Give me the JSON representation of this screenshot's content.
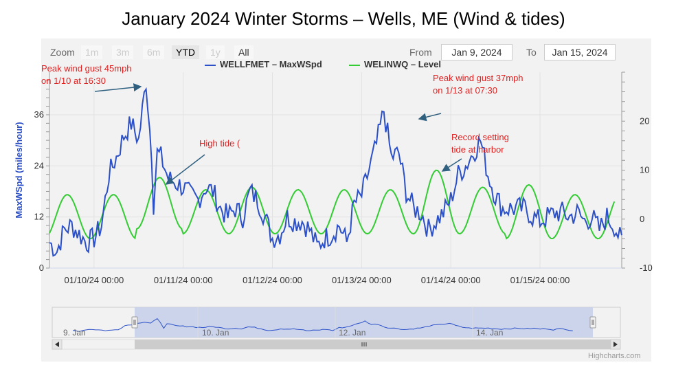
{
  "title": "January 2024 Winter Storms – Wells, ME (Wind & tides)",
  "toolbar": {
    "zoom_label": "Zoom",
    "zoom_buttons": [
      "1m",
      "3m",
      "6m",
      "YTD",
      "1y",
      "All"
    ],
    "active_zoom": "YTD",
    "from_label": "From",
    "from_value": "Jan 9, 2024",
    "to_label": "To",
    "to_value": "Jan 15, 2024"
  },
  "legend": {
    "items": [
      {
        "label": "WELLFMET – MaxWSpd",
        "color": "#2b50c8"
      },
      {
        "label": "WELINWQ – Level",
        "color": "#33cc33"
      }
    ],
    "position": "top-center"
  },
  "credits": "Highcharts.com",
  "annotations": [
    {
      "lines": [
        "Peak wind gust  45mph",
        "on 1/10 at 16:30"
      ]
    },
    {
      "lines": [
        "High tide ("
      ]
    },
    {
      "lines": [
        "Peak wind gust  37mph",
        "on 1/13 at 07:30"
      ]
    },
    {
      "lines": [
        "Record setting",
        "tide at harbor"
      ]
    }
  ],
  "colors": {
    "wind": "#2b50c8",
    "tide": "#33cc33",
    "annotation": "#e02020",
    "arrow": "#2f6080",
    "navigator_fill": "#c7d0ea"
  },
  "navigator": {
    "labels": [
      "9. Jan",
      "10. Jan",
      "12. Jan",
      "14. Jan"
    ]
  },
  "chart_data": {
    "type": "line",
    "x_range": [
      "2024-01-09 12:00",
      "2024-01-15 18:00"
    ],
    "x_ticks": [
      "01/10/24 00:00",
      "01/11/24 00:00",
      "01/12/24 00:00",
      "01/13/24 00:00",
      "01/14/24 00:00",
      "01/15/24 00:00"
    ],
    "y_left": {
      "label": "MaxWSpd (miles/hour)",
      "ticks": [
        "0",
        "12",
        "24",
        "36"
      ],
      "min": 0,
      "max": 46
    },
    "y_right": {
      "label": "",
      "ticks": [
        "-10",
        "0",
        "10",
        "20"
      ],
      "min": -10,
      "max": 30
    },
    "grid": true,
    "series": [
      {
        "name": "WELLFMET – MaxWSpd",
        "axis": "left",
        "x_hours": [
          0,
          2,
          4,
          6,
          8,
          10,
          12,
          14,
          16,
          18,
          20,
          22,
          24,
          26,
          27.5,
          28,
          29,
          30,
          32,
          34,
          36,
          38,
          40,
          42,
          44,
          46,
          48,
          50,
          52,
          54,
          56,
          58,
          60,
          62,
          64,
          66,
          68,
          70,
          72,
          74,
          76,
          78,
          80,
          82,
          84,
          86,
          88,
          90,
          92,
          94,
          96,
          98,
          100,
          102,
          104,
          106,
          108,
          110,
          112,
          114,
          116,
          118,
          120,
          122,
          124,
          126,
          128,
          130,
          132,
          134,
          136,
          138,
          140,
          142,
          144,
          146,
          148,
          150,
          152,
          154
        ],
        "values": [
          6,
          4,
          9,
          10,
          8,
          6,
          7,
          10,
          22,
          26,
          31,
          34,
          30,
          44,
          27,
          15,
          27,
          26,
          21,
          20,
          19,
          17,
          16,
          19,
          18,
          14,
          12,
          14,
          12,
          18,
          16,
          12,
          7,
          8,
          12,
          11,
          11,
          9,
          5,
          7,
          8,
          10,
          6,
          15,
          17,
          23,
          29,
          37,
          26,
          27,
          18,
          14,
          13,
          9,
          11,
          13,
          16,
          22,
          24,
          27,
          30,
          22,
          17,
          14,
          14,
          14,
          14,
          12,
          11,
          12,
          13,
          13,
          12,
          13,
          11,
          12,
          9,
          12,
          10,
          6
        ],
        "annotated_peaks": [
          {
            "x": "2024-01-10 16:30",
            "value": 45
          },
          {
            "x": "2024-01-13 07:30",
            "value": 37
          }
        ]
      },
      {
        "name": "WELINWQ – Level",
        "axis": "right",
        "amplitude_approx": 5.8,
        "tidal_period_hours": 12.42,
        "high_tides": [
          "01/09 ~17:00",
          "01/10 ~05:00",
          "01/10 ~17:30",
          "01/11 ~06:00",
          "01/11 ~18:00",
          "01/12 ~06:30",
          "01/12 ~19:00",
          "01/13 ~07:30",
          "01/13 ~19:30",
          "01/14 ~08:00",
          "01/14 ~20:00",
          "01/15 ~08:30",
          "01/15 ~21:00"
        ],
        "high_values": [
          5.0,
          5.0,
          8.5,
          6.0,
          6.5,
          6.0,
          6.0,
          6.0,
          10.0,
          6.5,
          7.0,
          5.0,
          5.5
        ],
        "low_values": [
          -4,
          -4,
          -2,
          -3,
          -3,
          -3,
          -3,
          -3,
          -3,
          -3,
          -4,
          -4,
          -4
        ]
      }
    ]
  }
}
